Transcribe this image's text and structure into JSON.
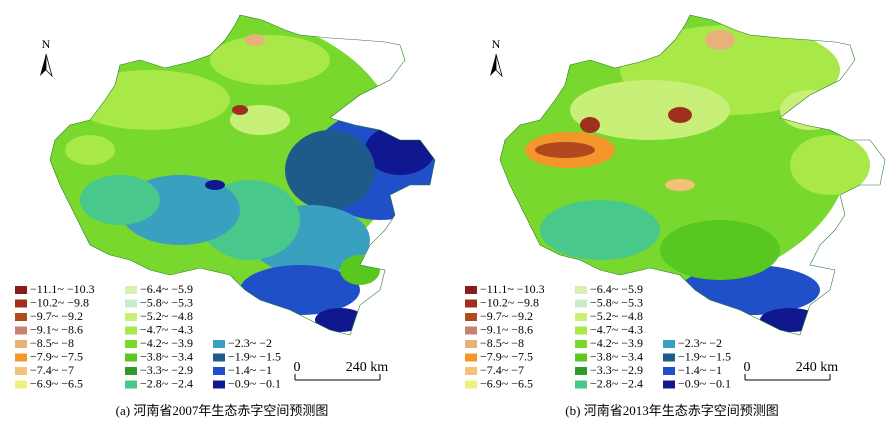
{
  "panels": [
    {
      "caption": "(a) 河南省2007年生态赤字空间预测图"
    },
    {
      "caption": "(b) 河南省2013年生态赤字空间预测图"
    }
  ],
  "north_label": "N",
  "scale_bar": {
    "start": "0",
    "end": "240 km"
  },
  "legend": [
    {
      "label": "−11.1~ −10.3",
      "color": "#8b1a1a"
    },
    {
      "label": "−10.2~ −9.8",
      "color": "#a0301e"
    },
    {
      "label": "−9.7~ −9.2",
      "color": "#b04a1e"
    },
    {
      "label": "−9.1~ −8.6",
      "color": "#c8826e"
    },
    {
      "label": "−8.5~ −8",
      "color": "#e8b07a"
    },
    {
      "label": "−7.9~ −7.5",
      "color": "#f5962a"
    },
    {
      "label": "−7.4~ −7",
      "color": "#f5c07a"
    },
    {
      "label": "−6.9~ −6.5",
      "color": "#f0f080"
    },
    {
      "label": "−6.4~ −5.9",
      "color": "#d8f0b0"
    },
    {
      "label": "−5.8~ −5.3",
      "color": "#c8ecc8"
    },
    {
      "label": "−5.2~ −4.8",
      "color": "#c8f078"
    },
    {
      "label": "−4.7~ −4.3",
      "color": "#a8e848"
    },
    {
      "label": "−4.2~ −3.9",
      "color": "#78d82e"
    },
    {
      "label": "−3.8~ −3.4",
      "color": "#58c820"
    },
    {
      "label": "−3.3~ −2.9",
      "color": "#2e9a28"
    },
    {
      "label": "−2.8~ −2.4",
      "color": "#48c88a"
    },
    {
      "label": "−2.3~ −2",
      "color": "#3aa0c0"
    },
    {
      "label": "−1.9~ −1.5",
      "color": "#1e5a8a"
    },
    {
      "label": "−1.4~ −1",
      "color": "#2050c8"
    },
    {
      "label": "−0.9~ −0.1",
      "color": "#101890"
    }
  ]
}
